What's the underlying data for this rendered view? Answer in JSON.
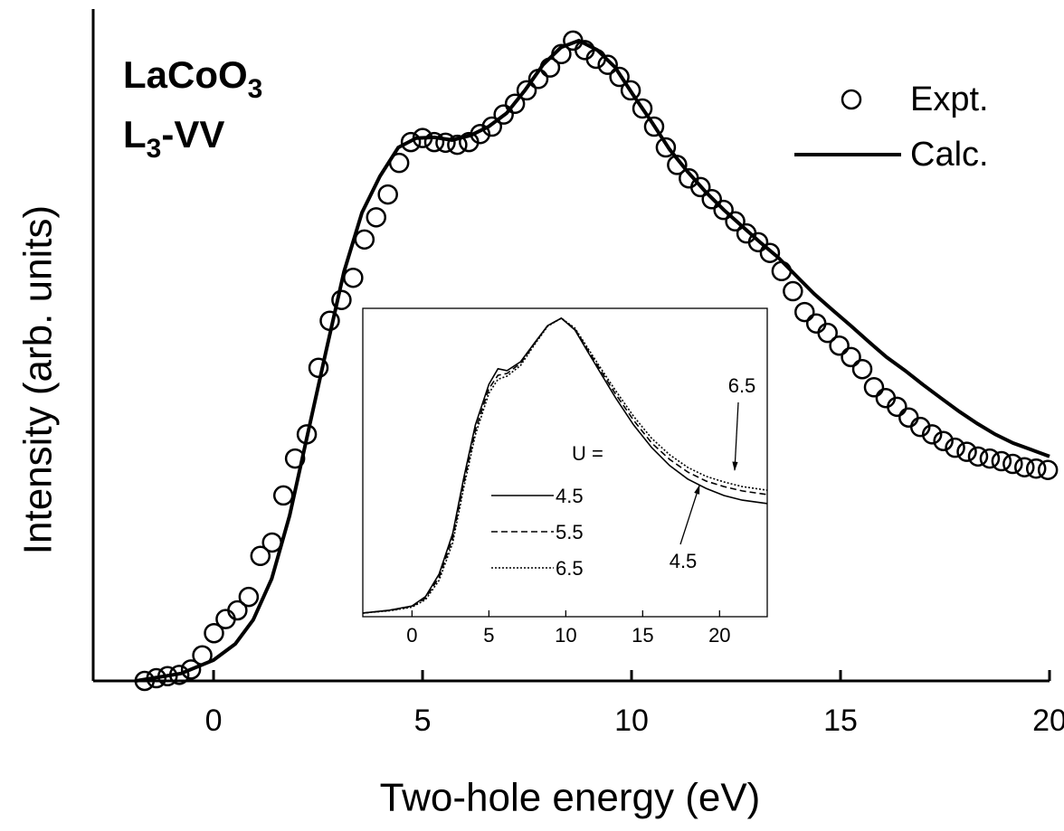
{
  "chart_data": [
    {
      "type": "line",
      "label_lines": [
        {
          "base": "LaCoO",
          "sub": "3"
        },
        {
          "base": "L",
          "sub": "3",
          "rest": "-VV"
        }
      ],
      "x_label": "Two-hole energy (eV)",
      "y_label": "Intensity (arb. units)",
      "xlim": [
        -2.88,
        20
      ],
      "ylim": [
        0,
        1
      ],
      "xticks": [
        0,
        5,
        10,
        15,
        20
      ],
      "legend": "upper right",
      "series": [
        {
          "name": "Expt.",
          "color": "#000000",
          "marker": "circle",
          "x": [
            -1.65,
            -1.37,
            -1.1,
            -0.82,
            -0.54,
            -0.27,
            0.01,
            0.29,
            0.57,
            0.84,
            1.12,
            1.4,
            1.67,
            1.95,
            2.23,
            2.51,
            2.78,
            3.06,
            3.34,
            3.61,
            3.89,
            4.17,
            4.44,
            4.72,
            5.0,
            5.28,
            5.55,
            5.83,
            6.11,
            6.38,
            6.66,
            6.94,
            7.21,
            7.49,
            7.77,
            8.05,
            8.32,
            8.6,
            8.88,
            9.15,
            9.43,
            9.71,
            9.98,
            10.26,
            10.54,
            10.82,
            11.09,
            11.37,
            11.65,
            11.92,
            12.2,
            12.48,
            12.75,
            13.03,
            13.31,
            13.59,
            13.86,
            14.14,
            14.42,
            14.69,
            14.97,
            15.25,
            15.52,
            15.8,
            16.08,
            16.35,
            16.63,
            16.91,
            17.19,
            17.46,
            17.74,
            18.02,
            18.29,
            18.57,
            18.85,
            19.12,
            19.4,
            19.68,
            19.96
          ],
          "values": [
            0.0,
            0.004,
            0.007,
            0.009,
            0.017,
            0.038,
            0.071,
            0.092,
            0.105,
            0.125,
            0.186,
            0.206,
            0.276,
            0.331,
            0.367,
            0.466,
            0.536,
            0.567,
            0.6,
            0.657,
            0.69,
            0.724,
            0.771,
            0.802,
            0.808,
            0.802,
            0.801,
            0.798,
            0.802,
            0.814,
            0.825,
            0.843,
            0.859,
            0.879,
            0.896,
            0.913,
            0.933,
            0.953,
            0.939,
            0.926,
            0.917,
            0.899,
            0.879,
            0.852,
            0.825,
            0.794,
            0.768,
            0.748,
            0.735,
            0.717,
            0.701,
            0.684,
            0.666,
            0.653,
            0.637,
            0.61,
            0.58,
            0.549,
            0.532,
            0.518,
            0.499,
            0.482,
            0.464,
            0.437,
            0.421,
            0.408,
            0.392,
            0.378,
            0.367,
            0.357,
            0.347,
            0.341,
            0.334,
            0.331,
            0.327,
            0.323,
            0.318,
            0.316,
            0.314
          ]
        },
        {
          "name": "Calc.",
          "color": "#000000",
          "style": "solid",
          "x": [
            -1.86,
            -0.78,
            0,
            0.52,
            0.95,
            1.39,
            1.82,
            2.25,
            2.68,
            3.12,
            3.55,
            3.98,
            4.42,
            4.85,
            5.28,
            5.71,
            6.15,
            6.58,
            7.01,
            7.45,
            7.88,
            8.31,
            8.74,
            9.18,
            9.61,
            10.04,
            10.48,
            10.91,
            11.34,
            11.77,
            12.21,
            12.64,
            13.07,
            13.51,
            13.94,
            14.37,
            14.81,
            15.24,
            15.67,
            16.1,
            16.54,
            16.97,
            17.4,
            17.84,
            18.27,
            18.7,
            19.13,
            19.57,
            20.0
          ],
          "values": [
            0,
            0.011,
            0.031,
            0.055,
            0.091,
            0.152,
            0.246,
            0.367,
            0.488,
            0.609,
            0.697,
            0.751,
            0.794,
            0.808,
            0.809,
            0.805,
            0.812,
            0.825,
            0.845,
            0.879,
            0.917,
            0.943,
            0.953,
            0.939,
            0.913,
            0.872,
            0.832,
            0.791,
            0.758,
            0.728,
            0.701,
            0.677,
            0.653,
            0.63,
            0.603,
            0.576,
            0.552,
            0.529,
            0.505,
            0.482,
            0.462,
            0.441,
            0.421,
            0.401,
            0.383,
            0.367,
            0.354,
            0.344,
            0.334
          ]
        }
      ]
    },
    {
      "type": "line",
      "xlim": [
        -3.2,
        23.1
      ],
      "ylim": [
        0,
        1
      ],
      "xticks": [
        0,
        5,
        10,
        15,
        20
      ],
      "legend_title": "U =",
      "annotations": [
        "6.5",
        "4.5"
      ],
      "x": [
        -3.18,
        -1.47,
        0,
        0.88,
        1.76,
        2.65,
        3.35,
        4.12,
        5.0,
        5.59,
        6.18,
        7.06,
        7.94,
        8.82,
        9.71,
        10.59,
        11.47,
        12.35,
        13.24,
        14.41,
        15.59,
        16.76,
        17.94,
        19.12,
        20.29,
        21.47,
        23.12
      ],
      "series": [
        {
          "name": "4.5",
          "color": "#000000",
          "style": "solid",
          "values": [
            0.012,
            0.021,
            0.035,
            0.065,
            0.138,
            0.27,
            0.446,
            0.622,
            0.754,
            0.804,
            0.798,
            0.827,
            0.886,
            0.944,
            0.968,
            0.93,
            0.856,
            0.783,
            0.71,
            0.622,
            0.548,
            0.49,
            0.446,
            0.416,
            0.393,
            0.378,
            0.367
          ]
        },
        {
          "name": "5.5",
          "color": "#000000",
          "style": "dashed",
          "values": [
            0.012,
            0.02,
            0.033,
            0.06,
            0.128,
            0.255,
            0.43,
            0.605,
            0.74,
            0.783,
            0.789,
            0.822,
            0.884,
            0.944,
            0.968,
            0.933,
            0.862,
            0.792,
            0.722,
            0.637,
            0.563,
            0.51,
            0.469,
            0.44,
            0.422,
            0.408,
            0.396
          ]
        },
        {
          "name": "6.5",
          "color": "#000000",
          "style": "dotted",
          "values": [
            0.012,
            0.019,
            0.031,
            0.055,
            0.118,
            0.24,
            0.415,
            0.59,
            0.725,
            0.77,
            0.78,
            0.815,
            0.88,
            0.942,
            0.968,
            0.936,
            0.868,
            0.8,
            0.733,
            0.65,
            0.578,
            0.525,
            0.484,
            0.455,
            0.437,
            0.422,
            0.41
          ]
        }
      ]
    }
  ]
}
